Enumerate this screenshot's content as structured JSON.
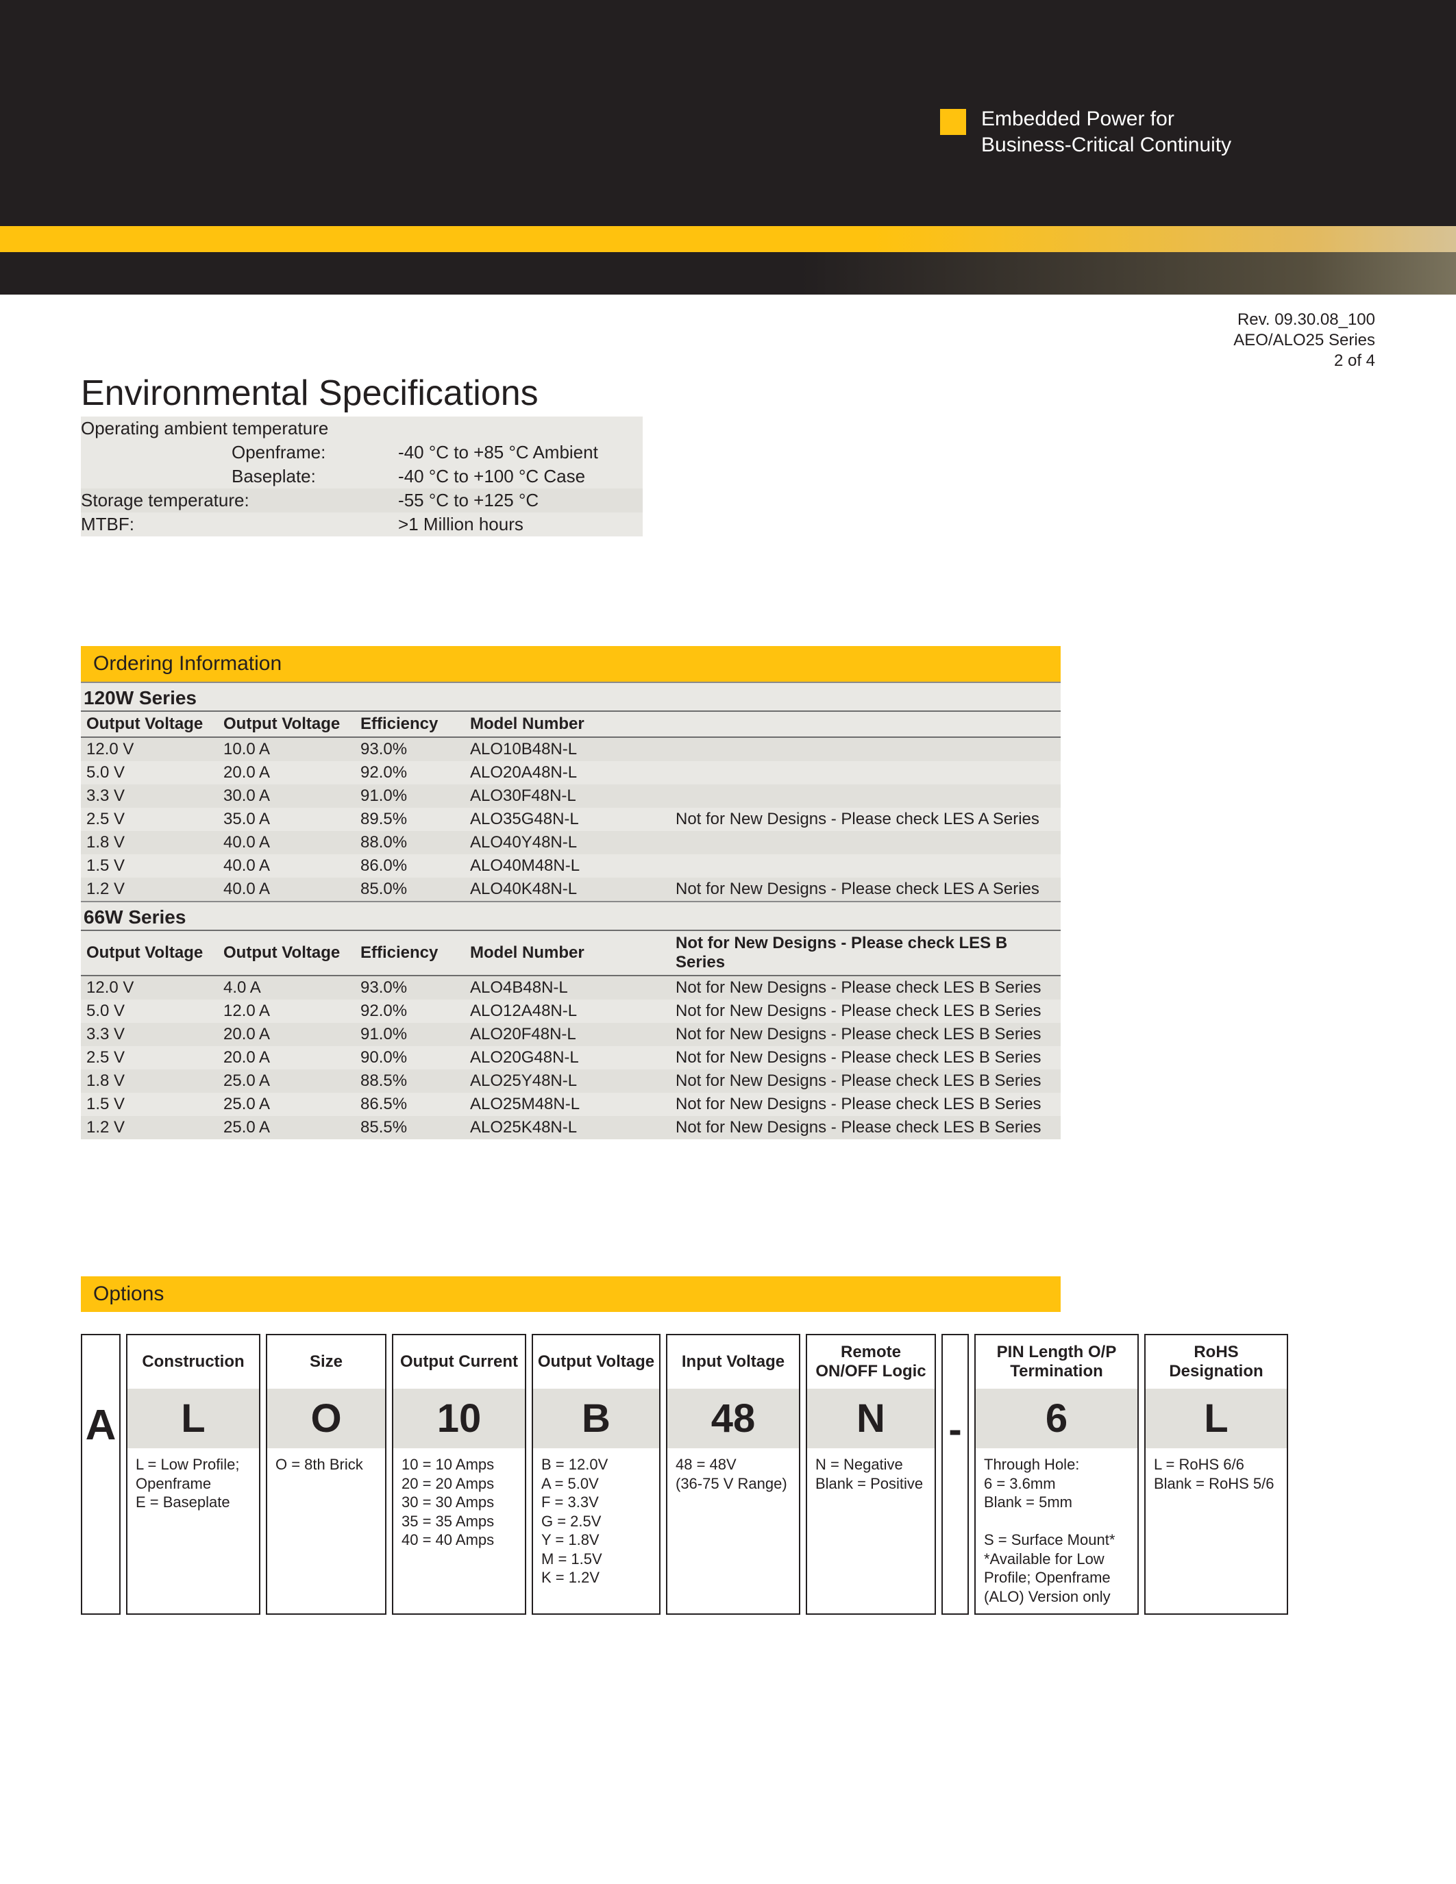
{
  "brand": {
    "tagline_line1": "Embedded Power for",
    "tagline_line2": "Business-Critical Continuity",
    "accent_color": "#ffc20e",
    "band_black": "#231f20"
  },
  "page_meta": {
    "rev": "Rev. 09.30.08_100",
    "series": "AEO/ALO25 Series",
    "page": "2 of 4"
  },
  "env": {
    "title": "Environmental Specifications",
    "rows": [
      {
        "label": "Operating ambient temperature",
        "value": "",
        "zebra": 0,
        "sub": false
      },
      {
        "label": "Openframe:",
        "value": "-40 °C to +85 °C Ambient",
        "zebra": 0,
        "sub": true
      },
      {
        "label": "Baseplate:",
        "value": "-40 °C to +100 °C Case",
        "zebra": 0,
        "sub": true
      },
      {
        "label": "Storage temperature:",
        "value": "-55 °C to +125 °C",
        "zebra": 1,
        "sub": false
      },
      {
        "label": "MTBF:",
        "value": ">1 Million hours",
        "zebra": 0,
        "sub": false
      }
    ]
  },
  "ordering": {
    "title": "Ordering Information",
    "columns": [
      "Output Voltage",
      "Output Voltage",
      "Efficiency",
      "Model Number",
      ""
    ],
    "series": [
      {
        "name": "120W Series",
        "rows": [
          {
            "v": "12.0 V",
            "i": "10.0 A",
            "eff": "93.0%",
            "model": "ALO10B48N-L",
            "note": ""
          },
          {
            "v": "5.0 V",
            "i": "20.0 A",
            "eff": "92.0%",
            "model": "ALO20A48N-L",
            "note": ""
          },
          {
            "v": "3.3 V",
            "i": "30.0 A",
            "eff": "91.0%",
            "model": "ALO30F48N-L",
            "note": ""
          },
          {
            "v": "2.5 V",
            "i": "35.0 A",
            "eff": "89.5%",
            "model": "ALO35G48N-L",
            "note": "Not for New Designs - Please check LES A Series"
          },
          {
            "v": "1.8 V",
            "i": "40.0 A",
            "eff": "88.0%",
            "model": "ALO40Y48N-L",
            "note": ""
          },
          {
            "v": "1.5 V",
            "i": "40.0 A",
            "eff": "86.0%",
            "model": "ALO40M48N-L",
            "note": ""
          },
          {
            "v": "1.2 V",
            "i": "40.0 A",
            "eff": "85.0%",
            "model": "ALO40K48N-L",
            "note": "Not for New Designs - Please check LES A Series"
          }
        ]
      },
      {
        "name": "66W Series",
        "rows": [
          {
            "v": "12.0 V",
            "i": "4.0 A",
            "eff": "93.0%",
            "model": "ALO4B48N-L",
            "note": "Not for New Designs - Please check LES B Series"
          },
          {
            "v": "5.0 V",
            "i": "12.0 A",
            "eff": "92.0%",
            "model": "ALO12A48N-L",
            "note": "Not for New Designs - Please check LES B Series"
          },
          {
            "v": "3.3 V",
            "i": "20.0 A",
            "eff": "91.0%",
            "model": "ALO20F48N-L",
            "note": "Not for New Designs - Please check LES B Series"
          },
          {
            "v": "2.5 V",
            "i": "20.0 A",
            "eff": "90.0%",
            "model": "ALO20G48N-L",
            "note": "Not for New Designs - Please check LES B Series"
          },
          {
            "v": "1.8 V",
            "i": "25.0 A",
            "eff": "88.5%",
            "model": "ALO25Y48N-L",
            "note": "Not for New Designs - Please check LES B Series"
          },
          {
            "v": "1.5 V",
            "i": "25.0 A",
            "eff": "86.5%",
            "model": "ALO25M48N-L",
            "note": "Not for New Designs - Please check LES B Series"
          },
          {
            "v": "1.2 V",
            "i": "25.0 A",
            "eff": "85.5%",
            "model": "ALO25K48N-L",
            "note": "Not for New Designs - Please check LES B Series"
          }
        ],
        "header_note": "Not for New Designs - Please check LES B Series"
      }
    ]
  },
  "options": {
    "title": "Options",
    "prefix": "A",
    "dash": "-",
    "columns": [
      {
        "key": "construction",
        "header": "Construction",
        "big": "L",
        "desc": "L = Low Profile;\n     Openframe\nE = Baseplate",
        "wclass": "w-construction"
      },
      {
        "key": "size",
        "header": "Size",
        "big": "O",
        "desc": "O = 8th Brick",
        "wclass": "w-size"
      },
      {
        "key": "current",
        "header": "Output Current",
        "big": "10",
        "desc": "10 = 10 Amps\n20 = 20 Amps\n30 = 30 Amps\n35 = 35 Amps\n40 = 40 Amps",
        "wclass": "w-current"
      },
      {
        "key": "voltage",
        "header": "Output Voltage",
        "big": "B",
        "desc": "B = 12.0V\nA = 5.0V\nF = 3.3V\nG = 2.5V\nY = 1.8V\nM = 1.5V\nK = 1.2V",
        "wclass": "w-voltage"
      },
      {
        "key": "input",
        "header": "Input Voltage",
        "big": "48",
        "desc": "48 = 48V\n(36-75 V Range)",
        "wclass": "w-input"
      },
      {
        "key": "remote",
        "header": "Remote ON/OFF Logic",
        "big": "N",
        "desc": "N = Negative\nBlank = Positive",
        "wclass": "w-remote"
      },
      {
        "key": "pin",
        "header": "PIN Length O/P Termination",
        "big": "6",
        "desc": "Through Hole:\n6 = 3.6mm\nBlank = 5mm\n\nS = Surface Mount*\n*Available for Low Profile; Openframe (ALO) Version only",
        "wclass": "w-pin"
      },
      {
        "key": "rohs",
        "header": "RoHS Designation",
        "big": "L",
        "desc": "L = RoHS 6/6\nBlank = RoHS 5/6",
        "wclass": "w-rohs"
      }
    ]
  }
}
